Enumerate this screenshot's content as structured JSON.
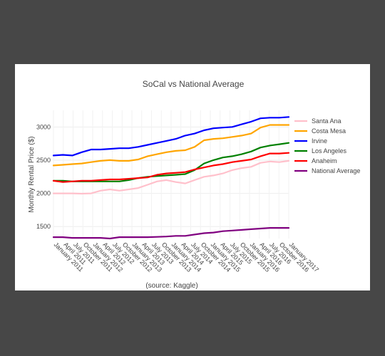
{
  "chart_data": {
    "type": "line",
    "title": "SoCal vs National Average",
    "xlabel": "(source: Kaggle)",
    "ylabel": "Monthly Rental Price ($)",
    "x_ticks": [
      "January 2011",
      "April 2011",
      "July 2011",
      "October 2011",
      "January 2012",
      "April 2012",
      "July 2012",
      "October 2012",
      "January 2013",
      "April 2013",
      "July 2013",
      "October 2013",
      "January 2014",
      "April 2014",
      "July 2014",
      "October 2014",
      "January 2015",
      "April 2015",
      "July 2015",
      "October 2015",
      "January 2016",
      "April 2016",
      "July 2016",
      "October 2016",
      "January 2017"
    ],
    "y_ticks": [
      1500,
      2000,
      2500,
      3000
    ],
    "ylim": [
      1320,
      3250
    ],
    "grid": true,
    "legend_position": "right",
    "series": [
      {
        "name": "Santa Ana",
        "color": "#ffc0cb",
        "values": [
          2000,
          2000,
          2000,
          1995,
          2000,
          2040,
          2060,
          2040,
          2060,
          2080,
          2130,
          2180,
          2200,
          2170,
          2150,
          2200,
          2250,
          2270,
          2300,
          2350,
          2380,
          2400,
          2460,
          2480,
          2470,
          2490
        ]
      },
      {
        "name": "Costa Mesa",
        "color": "#ffa500",
        "values": [
          2420,
          2430,
          2440,
          2450,
          2470,
          2490,
          2500,
          2490,
          2490,
          2510,
          2560,
          2590,
          2620,
          2640,
          2650,
          2700,
          2800,
          2820,
          2830,
          2850,
          2870,
          2900,
          2990,
          3030,
          3030,
          3030
        ]
      },
      {
        "name": "Irvine",
        "color": "#0000ff",
        "values": [
          2570,
          2580,
          2570,
          2620,
          2660,
          2660,
          2670,
          2680,
          2680,
          2700,
          2730,
          2760,
          2790,
          2820,
          2870,
          2900,
          2950,
          2980,
          2990,
          3000,
          3040,
          3080,
          3130,
          3140,
          3140,
          3150
        ]
      },
      {
        "name": "Los Angeles",
        "color": "#008000",
        "values": [
          2190,
          2190,
          2180,
          2180,
          2180,
          2180,
          2180,
          2180,
          2200,
          2230,
          2250,
          2260,
          2270,
          2280,
          2290,
          2350,
          2450,
          2500,
          2540,
          2560,
          2590,
          2630,
          2690,
          2720,
          2740,
          2760
        ]
      },
      {
        "name": "Anaheim",
        "color": "#ff0000",
        "values": [
          2190,
          2170,
          2180,
          2190,
          2190,
          2200,
          2210,
          2210,
          2220,
          2230,
          2240,
          2280,
          2300,
          2310,
          2320,
          2360,
          2390,
          2420,
          2440,
          2470,
          2490,
          2510,
          2560,
          2600,
          2600,
          2610
        ]
      },
      {
        "name": "National Average",
        "color": "#800080",
        "values": [
          1340,
          1340,
          1330,
          1330,
          1330,
          1330,
          1320,
          1340,
          1340,
          1340,
          1340,
          1345,
          1350,
          1360,
          1360,
          1380,
          1400,
          1410,
          1430,
          1440,
          1450,
          1460,
          1470,
          1480,
          1480,
          1480
        ]
      }
    ]
  }
}
